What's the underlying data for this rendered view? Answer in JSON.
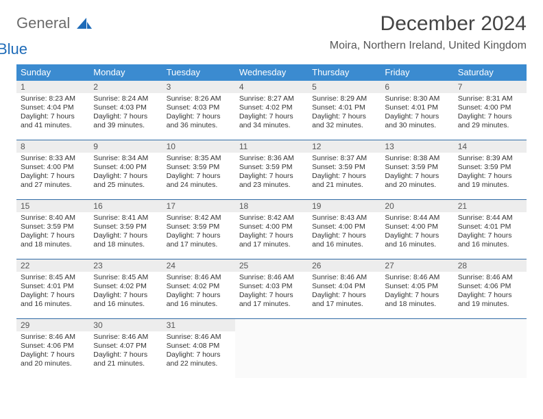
{
  "brand": {
    "word1": "General",
    "word2": "Blue"
  },
  "title": "December 2024",
  "subtitle": "Moira, Northern Ireland, United Kingdom",
  "colors": {
    "header_bg": "#3b8bd0",
    "header_text": "#ffffff",
    "rule": "#2f6aa5",
    "daynum_bg": "#ededed",
    "text": "#333333",
    "logo_grey": "#6b6b6b",
    "logo_blue": "#1e6bb8"
  },
  "dow": [
    "Sunday",
    "Monday",
    "Tuesday",
    "Wednesday",
    "Thursday",
    "Friday",
    "Saturday"
  ],
  "weeks": [
    [
      {
        "n": "1",
        "sr": "8:23 AM",
        "ss": "4:04 PM",
        "dl": "7 hours and 41 minutes."
      },
      {
        "n": "2",
        "sr": "8:24 AM",
        "ss": "4:03 PM",
        "dl": "7 hours and 39 minutes."
      },
      {
        "n": "3",
        "sr": "8:26 AM",
        "ss": "4:03 PM",
        "dl": "7 hours and 36 minutes."
      },
      {
        "n": "4",
        "sr": "8:27 AM",
        "ss": "4:02 PM",
        "dl": "7 hours and 34 minutes."
      },
      {
        "n": "5",
        "sr": "8:29 AM",
        "ss": "4:01 PM",
        "dl": "7 hours and 32 minutes."
      },
      {
        "n": "6",
        "sr": "8:30 AM",
        "ss": "4:01 PM",
        "dl": "7 hours and 30 minutes."
      },
      {
        "n": "7",
        "sr": "8:31 AM",
        "ss": "4:00 PM",
        "dl": "7 hours and 29 minutes."
      }
    ],
    [
      {
        "n": "8",
        "sr": "8:33 AM",
        "ss": "4:00 PM",
        "dl": "7 hours and 27 minutes."
      },
      {
        "n": "9",
        "sr": "8:34 AM",
        "ss": "4:00 PM",
        "dl": "7 hours and 25 minutes."
      },
      {
        "n": "10",
        "sr": "8:35 AM",
        "ss": "3:59 PM",
        "dl": "7 hours and 24 minutes."
      },
      {
        "n": "11",
        "sr": "8:36 AM",
        "ss": "3:59 PM",
        "dl": "7 hours and 23 minutes."
      },
      {
        "n": "12",
        "sr": "8:37 AM",
        "ss": "3:59 PM",
        "dl": "7 hours and 21 minutes."
      },
      {
        "n": "13",
        "sr": "8:38 AM",
        "ss": "3:59 PM",
        "dl": "7 hours and 20 minutes."
      },
      {
        "n": "14",
        "sr": "8:39 AM",
        "ss": "3:59 PM",
        "dl": "7 hours and 19 minutes."
      }
    ],
    [
      {
        "n": "15",
        "sr": "8:40 AM",
        "ss": "3:59 PM",
        "dl": "7 hours and 18 minutes."
      },
      {
        "n": "16",
        "sr": "8:41 AM",
        "ss": "3:59 PM",
        "dl": "7 hours and 18 minutes."
      },
      {
        "n": "17",
        "sr": "8:42 AM",
        "ss": "3:59 PM",
        "dl": "7 hours and 17 minutes."
      },
      {
        "n": "18",
        "sr": "8:42 AM",
        "ss": "4:00 PM",
        "dl": "7 hours and 17 minutes."
      },
      {
        "n": "19",
        "sr": "8:43 AM",
        "ss": "4:00 PM",
        "dl": "7 hours and 16 minutes."
      },
      {
        "n": "20",
        "sr": "8:44 AM",
        "ss": "4:00 PM",
        "dl": "7 hours and 16 minutes."
      },
      {
        "n": "21",
        "sr": "8:44 AM",
        "ss": "4:01 PM",
        "dl": "7 hours and 16 minutes."
      }
    ],
    [
      {
        "n": "22",
        "sr": "8:45 AM",
        "ss": "4:01 PM",
        "dl": "7 hours and 16 minutes."
      },
      {
        "n": "23",
        "sr": "8:45 AM",
        "ss": "4:02 PM",
        "dl": "7 hours and 16 minutes."
      },
      {
        "n": "24",
        "sr": "8:46 AM",
        "ss": "4:02 PM",
        "dl": "7 hours and 16 minutes."
      },
      {
        "n": "25",
        "sr": "8:46 AM",
        "ss": "4:03 PM",
        "dl": "7 hours and 17 minutes."
      },
      {
        "n": "26",
        "sr": "8:46 AM",
        "ss": "4:04 PM",
        "dl": "7 hours and 17 minutes."
      },
      {
        "n": "27",
        "sr": "8:46 AM",
        "ss": "4:05 PM",
        "dl": "7 hours and 18 minutes."
      },
      {
        "n": "28",
        "sr": "8:46 AM",
        "ss": "4:06 PM",
        "dl": "7 hours and 19 minutes."
      }
    ],
    [
      {
        "n": "29",
        "sr": "8:46 AM",
        "ss": "4:06 PM",
        "dl": "7 hours and 20 minutes."
      },
      {
        "n": "30",
        "sr": "8:46 AM",
        "ss": "4:07 PM",
        "dl": "7 hours and 21 minutes."
      },
      {
        "n": "31",
        "sr": "8:46 AM",
        "ss": "4:08 PM",
        "dl": "7 hours and 22 minutes."
      },
      {
        "empty": true
      },
      {
        "empty": true
      },
      {
        "empty": true
      },
      {
        "empty": true
      }
    ]
  ],
  "labels": {
    "sunrise": "Sunrise:",
    "sunset": "Sunset:",
    "daylight": "Daylight:"
  }
}
